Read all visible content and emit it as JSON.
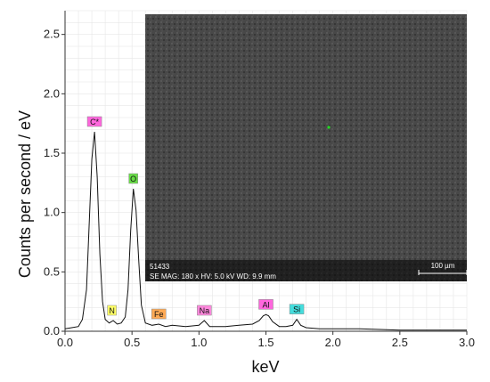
{
  "chart_data": {
    "type": "line",
    "xlabel": "keV",
    "ylabel": "Counts per second / eV",
    "xlim": [
      0.0,
      3.0
    ],
    "ylim": [
      0.0,
      2.7
    ],
    "x_ticks": [
      "0.0",
      "0.5",
      "1.0",
      "1.5",
      "2.0",
      "2.5",
      "3.0"
    ],
    "y_ticks": [
      "0.0",
      "0.5",
      "1.0",
      "1.5",
      "2.0",
      "2.5"
    ],
    "grid": true,
    "series": [
      {
        "points": [
          [
            0.0,
            0.02
          ],
          [
            0.05,
            0.03
          ],
          [
            0.1,
            0.04
          ],
          [
            0.13,
            0.1
          ],
          [
            0.16,
            0.35
          ],
          [
            0.18,
            0.9
          ],
          [
            0.2,
            1.45
          ],
          [
            0.22,
            1.68
          ],
          [
            0.24,
            1.3
          ],
          [
            0.26,
            0.65
          ],
          [
            0.28,
            0.25
          ],
          [
            0.3,
            0.1
          ],
          [
            0.33,
            0.07
          ],
          [
            0.36,
            0.09
          ],
          [
            0.39,
            0.06
          ],
          [
            0.42,
            0.07
          ],
          [
            0.45,
            0.12
          ],
          [
            0.47,
            0.35
          ],
          [
            0.49,
            0.85
          ],
          [
            0.51,
            1.2
          ],
          [
            0.53,
            1.02
          ],
          [
            0.55,
            0.6
          ],
          [
            0.57,
            0.22
          ],
          [
            0.6,
            0.07
          ],
          [
            0.65,
            0.05
          ],
          [
            0.7,
            0.06
          ],
          [
            0.75,
            0.04
          ],
          [
            0.8,
            0.05
          ],
          [
            0.9,
            0.04
          ],
          [
            1.0,
            0.05
          ],
          [
            1.04,
            0.09
          ],
          [
            1.08,
            0.04
          ],
          [
            1.2,
            0.04
          ],
          [
            1.3,
            0.05
          ],
          [
            1.4,
            0.06
          ],
          [
            1.45,
            0.09
          ],
          [
            1.48,
            0.13
          ],
          [
            1.5,
            0.14
          ],
          [
            1.52,
            0.13
          ],
          [
            1.55,
            0.08
          ],
          [
            1.6,
            0.04
          ],
          [
            1.65,
            0.04
          ],
          [
            1.7,
            0.05
          ],
          [
            1.73,
            0.1
          ],
          [
            1.76,
            0.05
          ],
          [
            1.8,
            0.03
          ],
          [
            1.9,
            0.02
          ],
          [
            2.0,
            0.02
          ],
          [
            2.2,
            0.02
          ],
          [
            2.5,
            0.01
          ],
          [
            2.8,
            0.01
          ],
          [
            3.0,
            0.01
          ]
        ]
      }
    ],
    "peak_labels": [
      {
        "text": "C*",
        "x": 0.22,
        "y": 1.68,
        "color": "#ff66dd"
      },
      {
        "text": "O",
        "x": 0.51,
        "y": 1.2,
        "color": "#66dd44"
      },
      {
        "text": "N",
        "x": 0.35,
        "y": 0.09,
        "color": "#ffff66"
      },
      {
        "text": "Fe",
        "x": 0.7,
        "y": 0.06,
        "color": "#ffaa55"
      },
      {
        "text": "Na",
        "x": 1.04,
        "y": 0.09,
        "color": "#ff88dd"
      },
      {
        "text": "Al",
        "x": 1.5,
        "y": 0.14,
        "color": "#ff66dd"
      },
      {
        "text": "Si",
        "x": 1.73,
        "y": 0.1,
        "color": "#44dddd"
      }
    ]
  },
  "inset": {
    "id_text": "51433",
    "info_text": "SE  MAG: 180 x  HV: 5.0 kV  WD: 9.9 mm",
    "scale_label": "100 µm"
  }
}
